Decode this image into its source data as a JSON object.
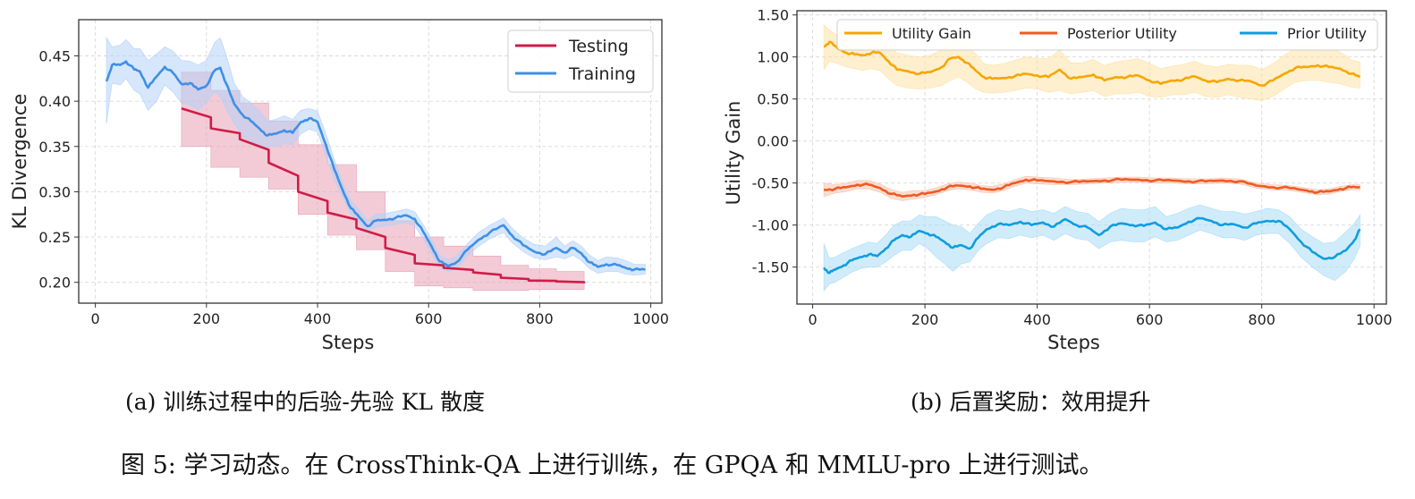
{
  "chart_data": [
    {
      "id": "a",
      "type": "line",
      "xlabel": "Steps",
      "ylabel": "KL Divergence",
      "xlim": [
        -30,
        1020
      ],
      "ylim": [
        0.177,
        0.49
      ],
      "xticks": [
        0,
        200,
        400,
        600,
        800,
        1000
      ],
      "yticks": [
        0.2,
        0.25,
        0.3,
        0.35,
        0.4,
        0.45
      ],
      "ytick_labels": [
        "0.20",
        "0.25",
        "0.30",
        "0.35",
        "0.40",
        "0.45"
      ],
      "grid": true,
      "legend": "top-right",
      "series": [
        {
          "name": "Testing",
          "color": "#d01c48",
          "fill_color": "#e8a0b4",
          "step": true,
          "x": [
            155,
            208,
            260,
            312,
            365,
            418,
            470,
            522,
            575,
            627,
            680,
            730,
            780,
            830,
            880
          ],
          "y": [
            0.392,
            0.37,
            0.358,
            0.332,
            0.3,
            0.277,
            0.26,
            0.238,
            0.221,
            0.216,
            0.211,
            0.205,
            0.202,
            0.201,
            0.199
          ],
          "lo": [
            0.35,
            0.327,
            0.316,
            0.303,
            0.275,
            0.252,
            0.236,
            0.212,
            0.196,
            0.194,
            0.191,
            0.191,
            0.192,
            0.192,
            0.192
          ],
          "hi": [
            0.432,
            0.412,
            0.398,
            0.378,
            0.352,
            0.33,
            0.3,
            0.268,
            0.25,
            0.24,
            0.229,
            0.219,
            0.215,
            0.212,
            0.21
          ]
        },
        {
          "name": "Training",
          "color": "#3f8fe6",
          "fill_color": "#b4d2f7",
          "step": false,
          "x": [
            20,
            30,
            45,
            55,
            70,
            80,
            95,
            110,
            125,
            140,
            155,
            170,
            185,
            200,
            215,
            225,
            235,
            250,
            265,
            280,
            295,
            310,
            325,
            340,
            355,
            370,
            385,
            400,
            415,
            430,
            445,
            460,
            475,
            490,
            505,
            520,
            540,
            560,
            575,
            590,
            605,
            620,
            635,
            650,
            670,
            690,
            710,
            735,
            750,
            770,
            790,
            810,
            830,
            845,
            860,
            875,
            890,
            905,
            920,
            940,
            955,
            970,
            990
          ],
          "y": [
            0.422,
            0.44,
            0.44,
            0.444,
            0.435,
            0.433,
            0.415,
            0.427,
            0.438,
            0.431,
            0.419,
            0.42,
            0.413,
            0.417,
            0.434,
            0.437,
            0.42,
            0.397,
            0.385,
            0.378,
            0.37,
            0.362,
            0.364,
            0.368,
            0.365,
            0.377,
            0.381,
            0.377,
            0.352,
            0.325,
            0.302,
            0.282,
            0.272,
            0.262,
            0.268,
            0.269,
            0.271,
            0.274,
            0.27,
            0.256,
            0.24,
            0.223,
            0.218,
            0.222,
            0.236,
            0.247,
            0.255,
            0.263,
            0.252,
            0.241,
            0.234,
            0.231,
            0.238,
            0.233,
            0.238,
            0.232,
            0.222,
            0.217,
            0.22,
            0.219,
            0.216,
            0.214,
            0.214
          ],
          "lo": [
            0.375,
            0.42,
            0.418,
            0.425,
            0.412,
            0.408,
            0.39,
            0.4,
            0.418,
            0.41,
            0.398,
            0.396,
            0.39,
            0.398,
            0.41,
            0.405,
            0.392,
            0.375,
            0.362,
            0.355,
            0.348,
            0.35,
            0.35,
            0.353,
            0.352,
            0.364,
            0.369,
            0.366,
            0.34,
            0.314,
            0.294,
            0.275,
            0.265,
            0.256,
            0.261,
            0.262,
            0.264,
            0.266,
            0.262,
            0.248,
            0.232,
            0.216,
            0.212,
            0.215,
            0.229,
            0.24,
            0.248,
            0.255,
            0.244,
            0.234,
            0.227,
            0.225,
            0.228,
            0.226,
            0.23,
            0.224,
            0.215,
            0.21,
            0.212,
            0.212,
            0.209,
            0.208,
            0.209
          ],
          "hi": [
            0.47,
            0.46,
            0.462,
            0.468,
            0.458,
            0.458,
            0.445,
            0.452,
            0.46,
            0.455,
            0.445,
            0.444,
            0.44,
            0.445,
            0.465,
            0.47,
            0.452,
            0.42,
            0.405,
            0.398,
            0.39,
            0.378,
            0.38,
            0.384,
            0.38,
            0.39,
            0.392,
            0.389,
            0.364,
            0.336,
            0.31,
            0.29,
            0.28,
            0.268,
            0.275,
            0.276,
            0.278,
            0.281,
            0.278,
            0.264,
            0.248,
            0.23,
            0.225,
            0.229,
            0.243,
            0.255,
            0.263,
            0.271,
            0.26,
            0.249,
            0.242,
            0.24,
            0.25,
            0.24,
            0.246,
            0.24,
            0.23,
            0.224,
            0.228,
            0.227,
            0.224,
            0.22,
            0.22
          ]
        }
      ]
    },
    {
      "id": "b",
      "type": "line",
      "xlabel": "Steps",
      "ylabel": "Utility Gain",
      "xlim": [
        -28,
        1022
      ],
      "ylim": [
        -1.94,
        1.55
      ],
      "xticks": [
        0,
        200,
        400,
        600,
        800,
        1000
      ],
      "yticks": [
        -1.5,
        -1.0,
        -0.5,
        0.0,
        0.5,
        1.0,
        1.5
      ],
      "ytick_labels": [
        "-1.50",
        "-1.00",
        "-0.50",
        "0.00",
        "0.50",
        "1.00",
        "1.50"
      ],
      "grid": true,
      "legend": "top (3 columns)",
      "series": [
        {
          "name": "Utility Gain",
          "color": "#f5a700",
          "fill_color": "#fde2a6",
          "x": [
            20,
            30,
            45,
            60,
            75,
            90,
            105,
            120,
            135,
            150,
            170,
            190,
            210,
            230,
            245,
            260,
            275,
            290,
            305,
            320,
            340,
            360,
            380,
            400,
            420,
            440,
            460,
            480,
            500,
            520,
            540,
            560,
            580,
            600,
            620,
            640,
            660,
            680,
            700,
            720,
            740,
            760,
            780,
            800,
            820,
            840,
            860,
            880,
            900,
            920,
            940,
            960,
            975
          ],
          "y": [
            1.12,
            1.18,
            1.1,
            1.05,
            1.03,
            1.02,
            1.05,
            1.05,
            0.95,
            0.85,
            0.83,
            0.8,
            0.82,
            0.88,
            0.98,
            1.0,
            0.93,
            0.84,
            0.76,
            0.74,
            0.75,
            0.77,
            0.8,
            0.78,
            0.76,
            0.85,
            0.74,
            0.76,
            0.79,
            0.72,
            0.76,
            0.76,
            0.78,
            0.72,
            0.68,
            0.72,
            0.73,
            0.77,
            0.72,
            0.7,
            0.74,
            0.72,
            0.71,
            0.66,
            0.72,
            0.8,
            0.87,
            0.88,
            0.9,
            0.88,
            0.86,
            0.8,
            0.76
          ],
          "lo": [
            0.85,
            0.95,
            0.92,
            0.88,
            0.86,
            0.84,
            0.86,
            0.84,
            0.74,
            0.66,
            0.63,
            0.62,
            0.63,
            0.66,
            0.72,
            0.76,
            0.7,
            0.62,
            0.58,
            0.57,
            0.58,
            0.6,
            0.63,
            0.62,
            0.58,
            0.6,
            0.56,
            0.58,
            0.6,
            0.53,
            0.56,
            0.56,
            0.58,
            0.53,
            0.52,
            0.55,
            0.55,
            0.58,
            0.53,
            0.52,
            0.55,
            0.52,
            0.5,
            0.48,
            0.53,
            0.62,
            0.7,
            0.72,
            0.72,
            0.7,
            0.68,
            0.64,
            0.63
          ],
          "hi": [
            1.38,
            1.32,
            1.25,
            1.2,
            1.18,
            1.17,
            1.2,
            1.22,
            1.15,
            1.05,
            1.02,
            1.0,
            1.02,
            1.08,
            1.17,
            1.2,
            1.12,
            1.04,
            0.92,
            0.9,
            0.92,
            0.96,
            1.0,
            0.98,
            0.98,
            1.08,
            0.93,
            0.93,
            0.97,
            0.9,
            0.94,
            0.96,
            0.98,
            0.92,
            0.86,
            0.89,
            0.91,
            0.95,
            0.9,
            0.88,
            0.91,
            0.9,
            0.9,
            0.85,
            0.92,
            1.02,
            1.1,
            1.14,
            1.12,
            1.1,
            1.06,
            0.96,
            0.94
          ]
        },
        {
          "name": "Posterior Utility",
          "color": "#f05a22",
          "fill_color": "#f8c2ac",
          "x": [
            20,
            40,
            60,
            80,
            100,
            120,
            140,
            160,
            180,
            200,
            220,
            240,
            260,
            280,
            300,
            320,
            340,
            360,
            380,
            400,
            430,
            460,
            490,
            520,
            550,
            580,
            610,
            640,
            670,
            700,
            730,
            760,
            790,
            820,
            850,
            880,
            900,
            920,
            940,
            960,
            975
          ],
          "y": [
            -0.58,
            -0.57,
            -0.55,
            -0.52,
            -0.52,
            -0.56,
            -0.63,
            -0.66,
            -0.64,
            -0.63,
            -0.6,
            -0.55,
            -0.53,
            -0.54,
            -0.57,
            -0.58,
            -0.55,
            -0.5,
            -0.46,
            -0.47,
            -0.48,
            -0.49,
            -0.48,
            -0.47,
            -0.46,
            -0.46,
            -0.47,
            -0.47,
            -0.48,
            -0.48,
            -0.47,
            -0.48,
            -0.53,
            -0.55,
            -0.56,
            -0.59,
            -0.61,
            -0.6,
            -0.57,
            -0.55,
            -0.55
          ],
          "lo": [
            -0.66,
            -0.62,
            -0.6,
            -0.57,
            -0.57,
            -0.61,
            -0.68,
            -0.71,
            -0.69,
            -0.67,
            -0.64,
            -0.59,
            -0.57,
            -0.58,
            -0.61,
            -0.62,
            -0.59,
            -0.54,
            -0.5,
            -0.51,
            -0.52,
            -0.52,
            -0.51,
            -0.5,
            -0.49,
            -0.49,
            -0.5,
            -0.5,
            -0.51,
            -0.51,
            -0.5,
            -0.51,
            -0.56,
            -0.58,
            -0.59,
            -0.62,
            -0.64,
            -0.63,
            -0.6,
            -0.58,
            -0.58
          ],
          "hi": [
            -0.5,
            -0.52,
            -0.5,
            -0.47,
            -0.47,
            -0.51,
            -0.58,
            -0.61,
            -0.59,
            -0.59,
            -0.56,
            -0.51,
            -0.49,
            -0.5,
            -0.53,
            -0.54,
            -0.51,
            -0.46,
            -0.42,
            -0.43,
            -0.44,
            -0.46,
            -0.45,
            -0.44,
            -0.43,
            -0.43,
            -0.44,
            -0.44,
            -0.45,
            -0.45,
            -0.44,
            -0.45,
            -0.5,
            -0.52,
            -0.53,
            -0.56,
            -0.58,
            -0.57,
            -0.54,
            -0.52,
            -0.52
          ],
          "band_note": "narrow"
        },
        {
          "name": "Prior Utility",
          "color": "#0f9de0",
          "fill_color": "#a9dcf5",
          "x": [
            20,
            30,
            40,
            55,
            70,
            85,
            100,
            115,
            130,
            145,
            160,
            175,
            190,
            205,
            220,
            235,
            250,
            265,
            280,
            295,
            310,
            330,
            350,
            370,
            390,
            410,
            430,
            450,
            470,
            490,
            510,
            530,
            550,
            570,
            590,
            610,
            630,
            650,
            670,
            690,
            710,
            730,
            750,
            770,
            790,
            810,
            830,
            850,
            870,
            890,
            910,
            930,
            950,
            965,
            975
          ],
          "y": [
            -1.51,
            -1.57,
            -1.53,
            -1.48,
            -1.42,
            -1.38,
            -1.35,
            -1.37,
            -1.28,
            -1.18,
            -1.12,
            -1.14,
            -1.07,
            -1.1,
            -1.14,
            -1.2,
            -1.27,
            -1.24,
            -1.28,
            -1.15,
            -1.05,
            -0.99,
            -1.0,
            -0.96,
            -1.0,
            -0.97,
            -1.02,
            -0.93,
            -1.0,
            -1.03,
            -1.12,
            -1.02,
            -0.98,
            -1.0,
            -1.01,
            -0.97,
            -1.05,
            -1.03,
            -0.96,
            -0.92,
            -0.95,
            -1.0,
            -0.99,
            -1.03,
            -0.98,
            -0.95,
            -0.95,
            -1.05,
            -1.2,
            -1.32,
            -1.4,
            -1.38,
            -1.3,
            -1.18,
            -1.05
          ],
          "lo": [
            -1.78,
            -1.7,
            -1.68,
            -1.62,
            -1.56,
            -1.52,
            -1.5,
            -1.5,
            -1.44,
            -1.36,
            -1.3,
            -1.3,
            -1.22,
            -1.28,
            -1.38,
            -1.46,
            -1.55,
            -1.46,
            -1.44,
            -1.3,
            -1.22,
            -1.15,
            -1.16,
            -1.12,
            -1.15,
            -1.12,
            -1.18,
            -1.1,
            -1.16,
            -1.18,
            -1.28,
            -1.2,
            -1.18,
            -1.2,
            -1.2,
            -1.14,
            -1.2,
            -1.18,
            -1.12,
            -1.06,
            -1.1,
            -1.15,
            -1.15,
            -1.18,
            -1.12,
            -1.1,
            -1.1,
            -1.22,
            -1.38,
            -1.5,
            -1.6,
            -1.66,
            -1.55,
            -1.4,
            -1.25
          ],
          "hi": [
            -1.22,
            -1.4,
            -1.38,
            -1.33,
            -1.28,
            -1.24,
            -1.2,
            -1.22,
            -1.12,
            -1.0,
            -0.95,
            -0.95,
            -0.88,
            -0.9,
            -0.9,
            -0.95,
            -1.0,
            -1.02,
            -1.1,
            -0.98,
            -0.88,
            -0.82,
            -0.84,
            -0.8,
            -0.84,
            -0.82,
            -0.86,
            -0.78,
            -0.84,
            -0.86,
            -0.96,
            -0.86,
            -0.8,
            -0.82,
            -0.82,
            -0.78,
            -0.9,
            -0.86,
            -0.8,
            -0.76,
            -0.8,
            -0.84,
            -0.84,
            -0.87,
            -0.84,
            -0.8,
            -0.82,
            -0.9,
            -1.05,
            -1.14,
            -1.22,
            -1.2,
            -1.08,
            -0.98,
            -0.88
          ]
        }
      ]
    }
  ],
  "captions": {
    "sub_a": "(a) 训练过程中的后验-先验 KL 散度",
    "sub_b": "(b) 后置奖励：效用提升",
    "figure": "图 5: 学习动态。在 CrossThink-QA 上进行训练，在 GPQA 和 MMLU-pro 上进行测试。"
  }
}
